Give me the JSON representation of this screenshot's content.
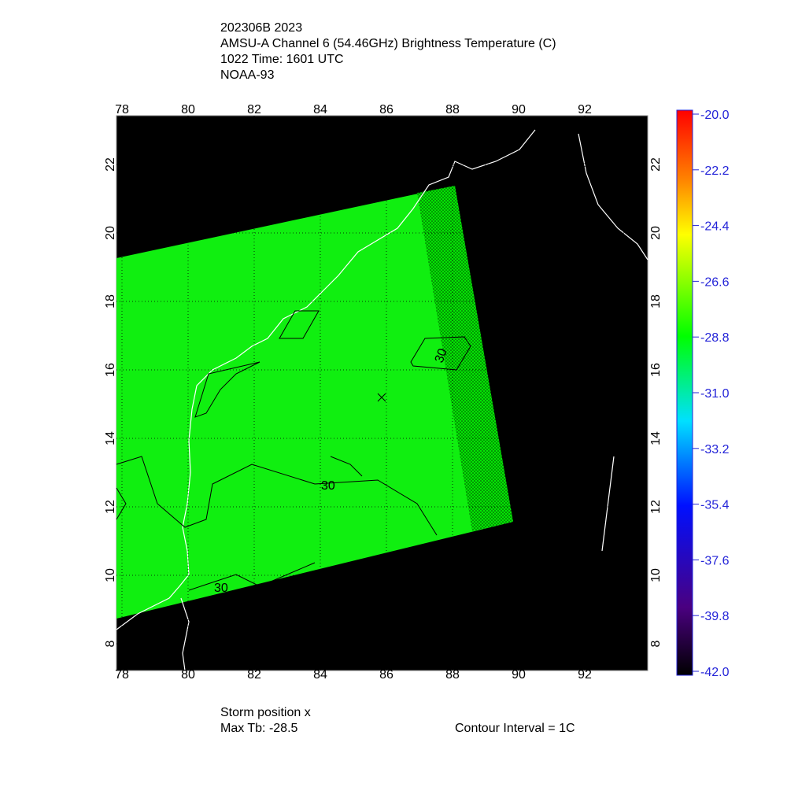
{
  "header": {
    "lines": [
      "202306B 2023",
      "AMSU-A Channel 6 (54.46GHz) Brightness Temperature (C)",
      "1022 Time: 1601 UTC",
      "NOAA-93"
    ]
  },
  "map": {
    "lon_labels": [
      "78",
      "80",
      "82",
      "84",
      "86",
      "88",
      "90",
      "92"
    ],
    "lat_labels": [
      "8",
      "10",
      "12",
      "14",
      "16",
      "18",
      "20",
      "22"
    ],
    "contour_labels": [
      "30",
      "30",
      "30"
    ]
  },
  "colorbar": {
    "labels": [
      "-20.0",
      "-22.2",
      "-24.4",
      "-26.6",
      "-28.8",
      "-31.0",
      "-33.2",
      "-35.4",
      "-37.6",
      "-39.8",
      "-42.0"
    ]
  },
  "footer": {
    "storm_position": "Storm position x",
    "max_tb": "Max Tb: -28.5",
    "contour_interval": "Contour Interval = 1C"
  }
}
